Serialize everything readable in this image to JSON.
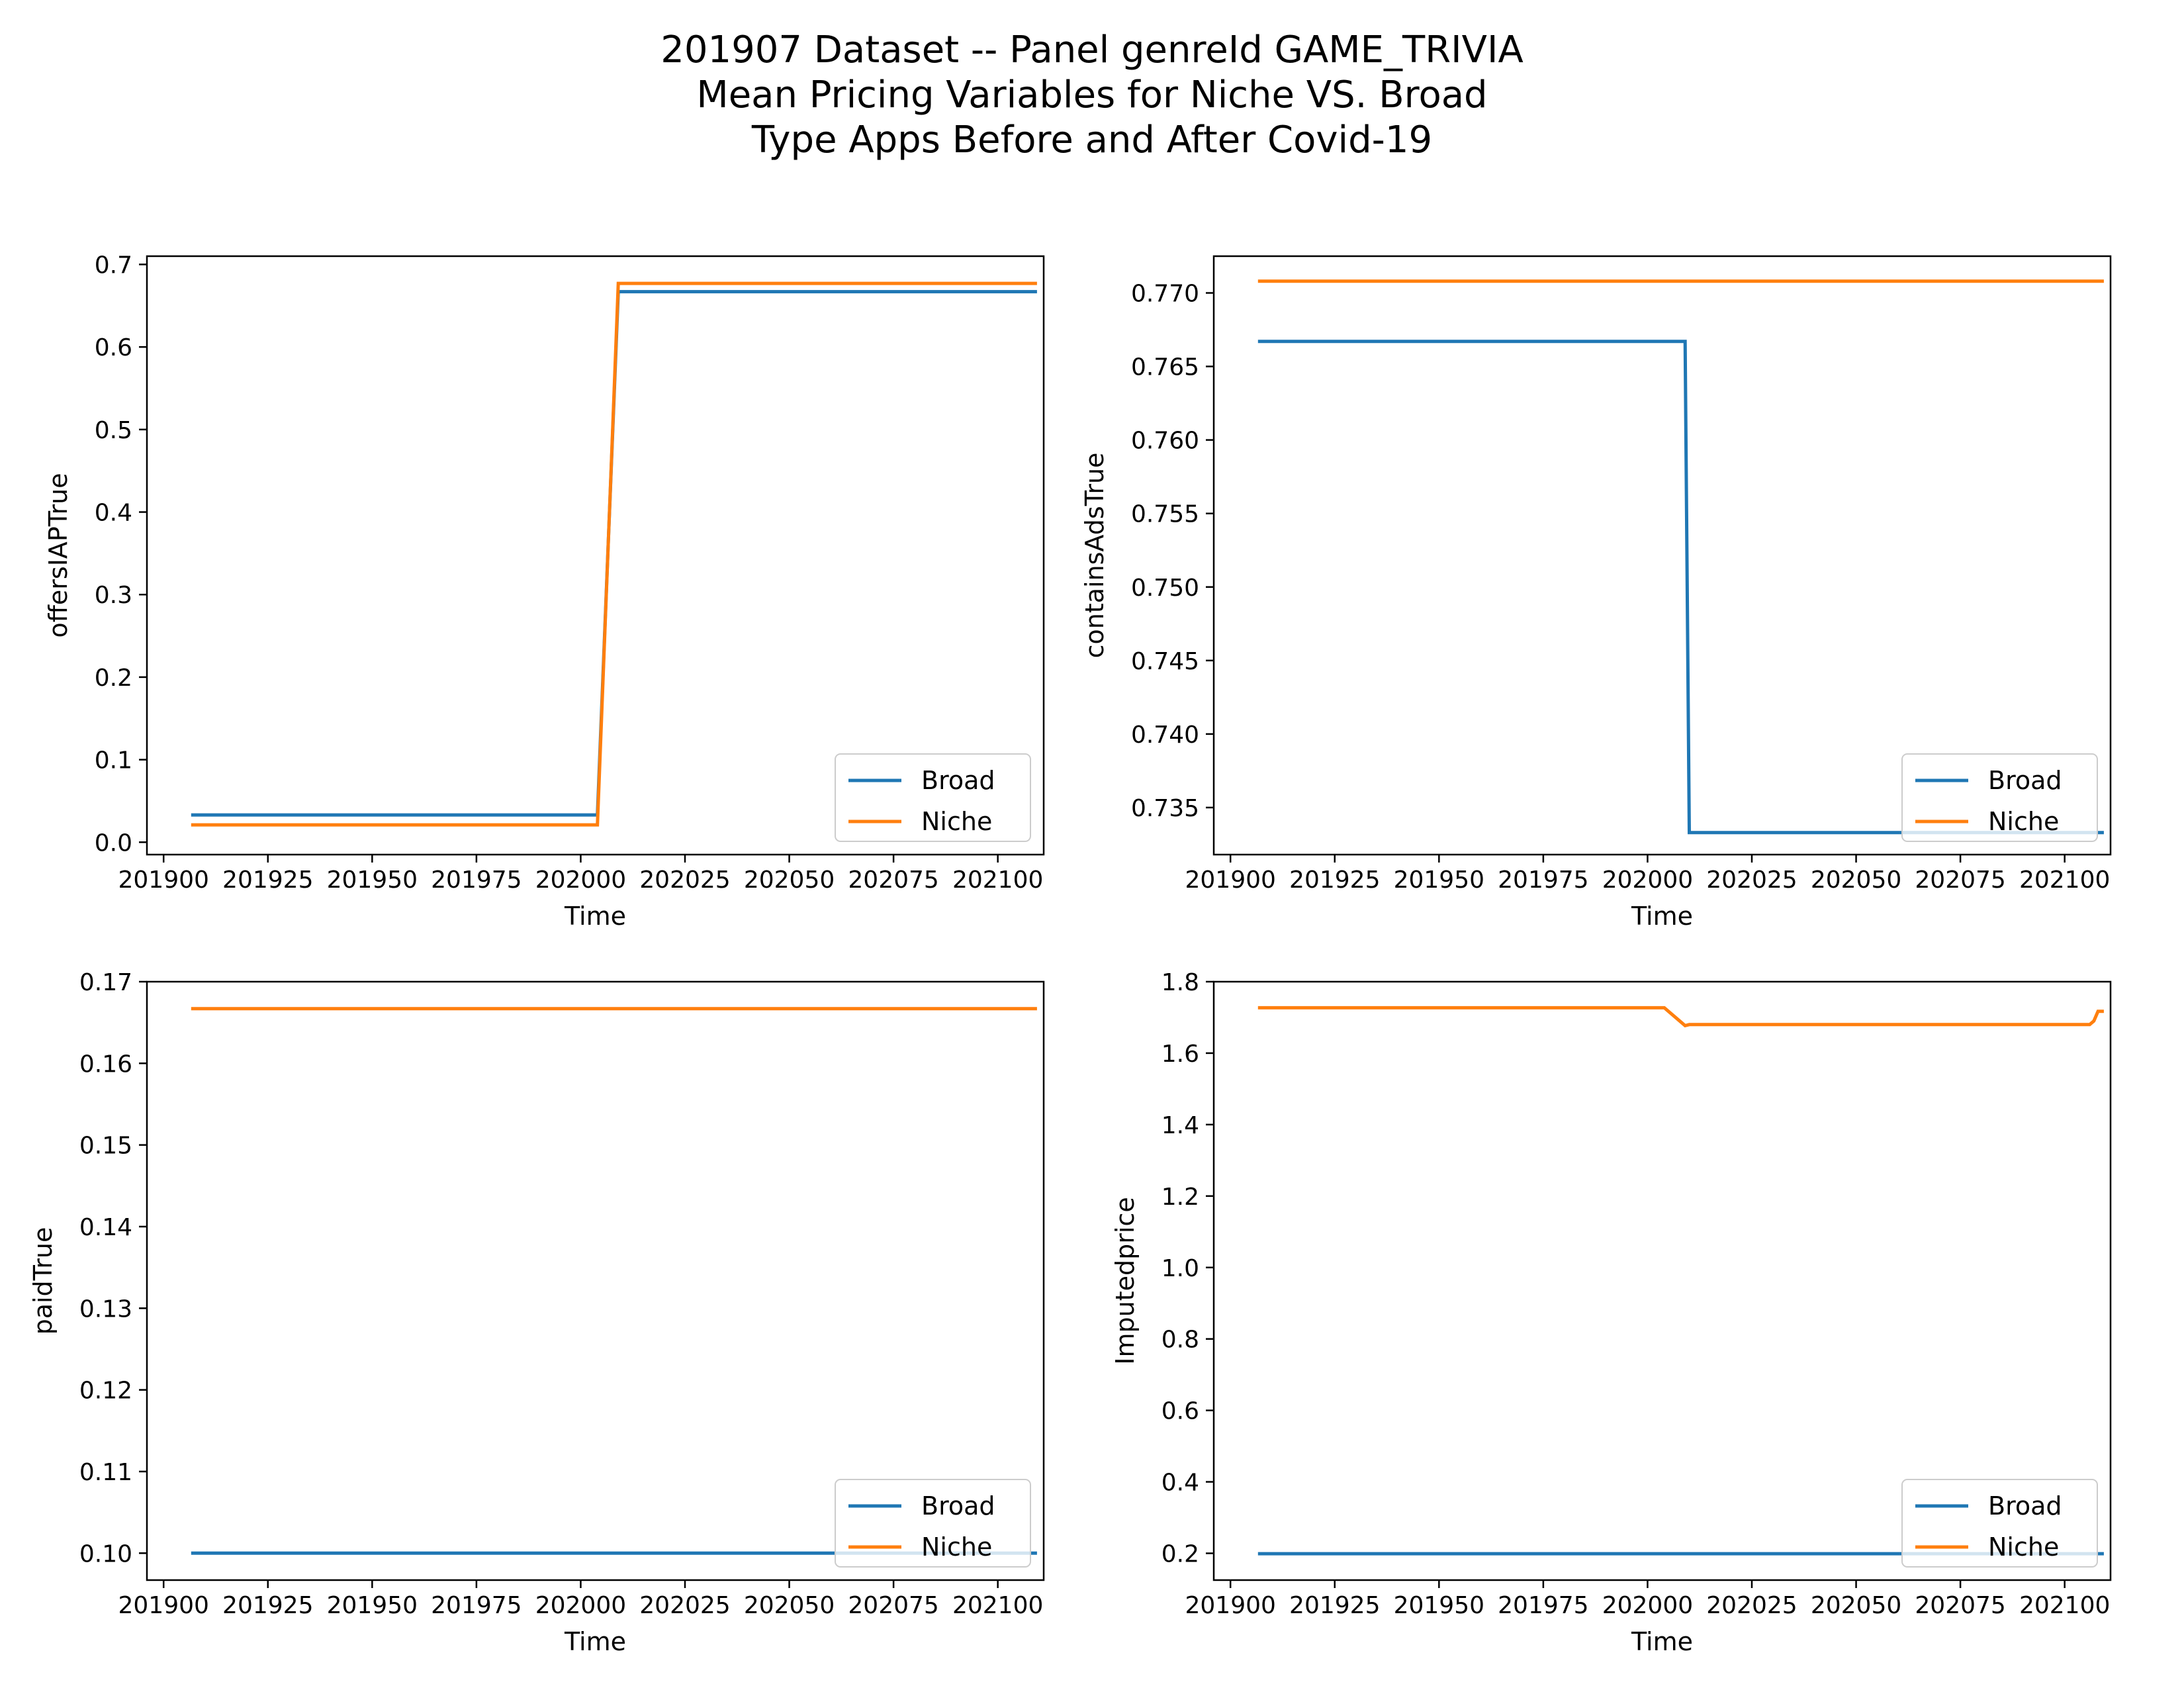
{
  "title_lines": [
    "201907 Dataset -- Panel genreId GAME_TRIVIA",
    "Mean Pricing Variables for Niche VS. Broad",
    "Type Apps Before and After Covid-19"
  ],
  "colors": {
    "Broad": "#1f77b4",
    "Niche": "#ff7f0e"
  },
  "chart_data": [
    {
      "type": "line",
      "title": "",
      "xlabel": "Time",
      "ylabel": "offersIAPTrue",
      "xlim": [
        201896,
        202111
      ],
      "ylim": [
        -0.015,
        0.71
      ],
      "xticks": [
        201900,
        201925,
        201950,
        201975,
        202000,
        202025,
        202050,
        202075,
        202100
      ],
      "xtick_labels": [
        "201900",
        "201925",
        "201950",
        "201975",
        "202000",
        "202025",
        "202050",
        "202075",
        "202100"
      ],
      "yticks": [
        0.0,
        0.1,
        0.2,
        0.3,
        0.4,
        0.5,
        0.6,
        0.7
      ],
      "ytick_labels": [
        "0.0",
        "0.1",
        "0.2",
        "0.3",
        "0.4",
        "0.5",
        "0.6",
        "0.7"
      ],
      "legend": "lower-right",
      "grid": false,
      "series": [
        {
          "name": "Broad",
          "x": [
            201907,
            202004,
            202009,
            202109
          ],
          "y": [
            0.033,
            0.033,
            0.667,
            0.667
          ]
        },
        {
          "name": "Niche",
          "x": [
            201907,
            202004,
            202009,
            202109
          ],
          "y": [
            0.021,
            0.021,
            0.677,
            0.677
          ]
        }
      ]
    },
    {
      "type": "line",
      "title": "",
      "xlabel": "Time",
      "ylabel": "containsAdsTrue",
      "xlim": [
        201896,
        202111
      ],
      "ylim": [
        0.7318,
        0.7725
      ],
      "xticks": [
        201900,
        201925,
        201950,
        201975,
        202000,
        202025,
        202050,
        202075,
        202100
      ],
      "xtick_labels": [
        "201900",
        "201925",
        "201950",
        "201975",
        "202000",
        "202025",
        "202050",
        "202075",
        "202100"
      ],
      "yticks": [
        0.735,
        0.74,
        0.745,
        0.75,
        0.755,
        0.76,
        0.765,
        0.77
      ],
      "ytick_labels": [
        "0.735",
        "0.740",
        "0.745",
        "0.750",
        "0.755",
        "0.760",
        "0.765",
        "0.770"
      ],
      "legend": "lower-right",
      "grid": false,
      "series": [
        {
          "name": "Broad",
          "x": [
            201907,
            202009,
            202010,
            202109
          ],
          "y": [
            0.7667,
            0.7667,
            0.7333,
            0.7333
          ]
        },
        {
          "name": "Niche",
          "x": [
            201907,
            202109
          ],
          "y": [
            0.7708,
            0.7708
          ]
        }
      ]
    },
    {
      "type": "line",
      "title": "",
      "xlabel": "Time",
      "ylabel": "paidTrue",
      "xlim": [
        201896,
        202111
      ],
      "ylim": [
        0.0967,
        0.17
      ],
      "xticks": [
        201900,
        201925,
        201950,
        201975,
        202000,
        202025,
        202050,
        202075,
        202100
      ],
      "xtick_labels": [
        "201900",
        "201925",
        "201950",
        "201975",
        "202000",
        "202025",
        "202050",
        "202075",
        "202100"
      ],
      "yticks": [
        0.1,
        0.11,
        0.12,
        0.13,
        0.14,
        0.15,
        0.16,
        0.17
      ],
      "ytick_labels": [
        "0.10",
        "0.11",
        "0.12",
        "0.13",
        "0.14",
        "0.15",
        "0.16",
        "0.17"
      ],
      "legend": "lower-right",
      "grid": false,
      "series": [
        {
          "name": "Broad",
          "x": [
            201907,
            202109
          ],
          "y": [
            0.1,
            0.1
          ]
        },
        {
          "name": "Niche",
          "x": [
            201907,
            202109
          ],
          "y": [
            0.1667,
            0.1667
          ]
        }
      ]
    },
    {
      "type": "line",
      "title": "",
      "xlabel": "Time",
      "ylabel": "Imputedprice",
      "xlim": [
        201896,
        202111
      ],
      "ylim": [
        0.125,
        1.8
      ],
      "xticks": [
        201900,
        201925,
        201950,
        201975,
        202000,
        202025,
        202050,
        202075,
        202100
      ],
      "xtick_labels": [
        "201900",
        "201925",
        "201950",
        "201975",
        "202000",
        "202025",
        "202050",
        "202075",
        "202100"
      ],
      "yticks": [
        0.2,
        0.4,
        0.6,
        0.8,
        1.0,
        1.2,
        1.4,
        1.6,
        1.8
      ],
      "ytick_labels": [
        "0.2",
        "0.4",
        "0.6",
        "0.8",
        "1.0",
        "1.2",
        "1.4",
        "1.6",
        "1.8"
      ],
      "legend": "lower-right",
      "grid": false,
      "series": [
        {
          "name": "Broad",
          "x": [
            201907,
            202109
          ],
          "y": [
            0.199,
            0.199
          ]
        },
        {
          "name": "Niche",
          "x": [
            201907,
            202004,
            202009,
            202010,
            202106,
            202107,
            202108,
            202109
          ],
          "y": [
            1.727,
            1.727,
            1.677,
            1.68,
            1.68,
            1.69,
            1.717,
            1.717
          ]
        }
      ]
    }
  ]
}
